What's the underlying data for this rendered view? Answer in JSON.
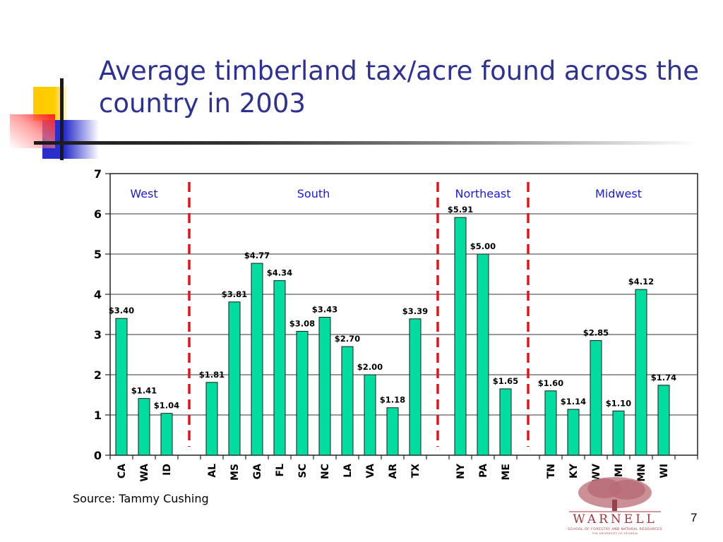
{
  "slide": {
    "title": "Average timberland tax/acre found across the country in 2003",
    "source": "Source: Tammy Cushing",
    "page_number": "7",
    "logo": {
      "name": "WARNELL",
      "subtitle": "SCHOOL OF FORESTRY AND NATURAL RESOURCES",
      "subtitle2": "THE UNIVERSITY OF GEORGIA"
    }
  },
  "colors": {
    "title": "#2e3192",
    "bar_fill": "#00dd9e",
    "bar_stroke": "#1a1a1a",
    "divider": "#e8101a",
    "region_label": "#1a1adb",
    "logo": "#a3363d"
  },
  "chart_data": {
    "type": "bar",
    "title": "Average timberland tax/acre found across the country in 2003",
    "xlabel": "",
    "ylabel": "",
    "ylim": [
      0,
      7
    ],
    "yticks": [
      0,
      1,
      2,
      3,
      4,
      5,
      6,
      7
    ],
    "grid": true,
    "legend": null,
    "categories": [
      "CA",
      "WA",
      "ID",
      "",
      "AL",
      "MS",
      "GA",
      "FL",
      "SC",
      "NC",
      "LA",
      "VA",
      "AR",
      "TX",
      "",
      "NY",
      "PA",
      "ME",
      "",
      "TN",
      "KY",
      "WV",
      "MI",
      "MN",
      "WI",
      ""
    ],
    "values": [
      3.4,
      1.41,
      1.04,
      null,
      1.81,
      3.81,
      4.77,
      4.34,
      3.08,
      3.43,
      2.7,
      2.0,
      1.18,
      3.39,
      null,
      5.91,
      5.0,
      1.65,
      null,
      1.6,
      1.14,
      2.85,
      1.1,
      4.12,
      1.74,
      null
    ],
    "data_labels": [
      "$3.40",
      "$1.41",
      "$1.04",
      "",
      "$1.81",
      "$3.81",
      "$4.77",
      "$4.34",
      "$3.08",
      "$3.43",
      "$2.70",
      "$2.00",
      "$1.18",
      "$3.39",
      "",
      "$5.91",
      "$5.00",
      "$1.65",
      "",
      "$1.60",
      "$1.14",
      "$2.85",
      "$1.10",
      "$4.12",
      "$1.74",
      ""
    ],
    "regions": [
      {
        "name": "West",
        "states": [
          "CA",
          "WA",
          "ID"
        ]
      },
      {
        "name": "South",
        "states": [
          "AL",
          "MS",
          "GA",
          "FL",
          "SC",
          "NC",
          "LA",
          "VA",
          "AR",
          "TX"
        ]
      },
      {
        "name": "Northeast",
        "states": [
          "NY",
          "PA",
          "ME"
        ]
      },
      {
        "name": "Midwest",
        "states": [
          "TN",
          "KY",
          "WV",
          "MI",
          "MN",
          "WI"
        ]
      }
    ],
    "annotations": [
      "Red dashed vertical lines separate regions"
    ]
  }
}
